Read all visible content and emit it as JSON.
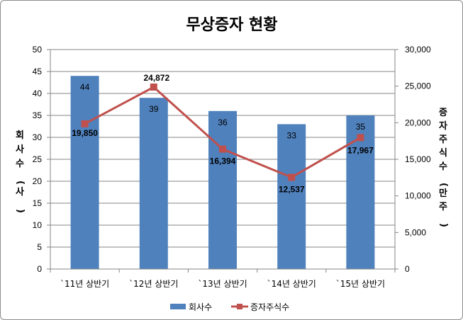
{
  "chart_data": {
    "type": "bar+line",
    "title": "무상증자 현황",
    "categories": [
      "`11년 상반기",
      "`12년 상반기",
      "`13년 상반기",
      "`14년 상반기",
      "`15년 상반기"
    ],
    "series": [
      {
        "name": "회사수",
        "type": "bar",
        "axis": "left",
        "color": "#4F81BD",
        "values": [
          44,
          39,
          36,
          33,
          35
        ],
        "labels": [
          "44",
          "39",
          "36",
          "33",
          "35"
        ]
      },
      {
        "name": "증자주식수",
        "type": "line",
        "axis": "right",
        "color": "#C0504D",
        "values": [
          19850,
          24872,
          16394,
          12537,
          17967
        ],
        "labels": [
          "19,850",
          "24,872",
          "16,394",
          "12,537",
          "17,967"
        ]
      }
    ],
    "y_left": {
      "label": "회사수(사)",
      "min": 0,
      "max": 50,
      "ticks": [
        "0",
        "5",
        "10",
        "15",
        "20",
        "25",
        "30",
        "35",
        "40",
        "45",
        "50"
      ]
    },
    "y_right": {
      "label": "증자주식수(만주)",
      "min": 0,
      "max": 30000,
      "ticks": [
        "0",
        "5,000",
        "10,000",
        "15,000",
        "20,000",
        "25,000",
        "30,000"
      ]
    },
    "grid": true,
    "legend_position": "bottom"
  }
}
